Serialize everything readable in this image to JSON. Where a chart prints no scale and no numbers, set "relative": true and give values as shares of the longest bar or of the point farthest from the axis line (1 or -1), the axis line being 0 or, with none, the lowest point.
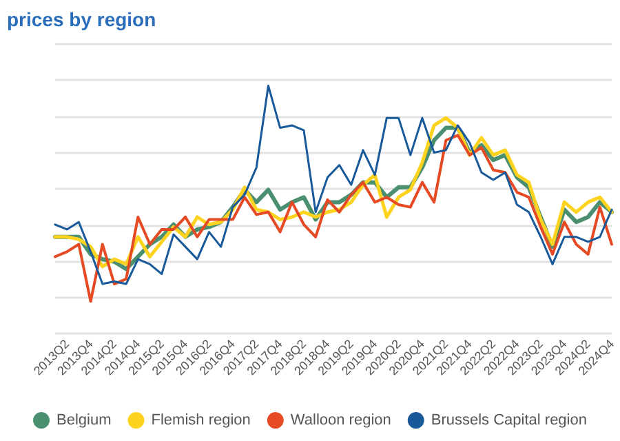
{
  "chart_data": {
    "type": "line",
    "title": "prices by region",
    "relative": true,
    "grid": "y",
    "legend": "bottom",
    "marker": "none",
    "line_style": "solid",
    "categories": [
      null,
      "2013Q2",
      null,
      "2013Q4",
      null,
      "2014Q2",
      null,
      "2014Q4",
      null,
      "2015Q2",
      null,
      "2015Q4",
      null,
      "2016Q2",
      null,
      "2016Q4",
      null,
      "2017Q2",
      null,
      "2017Q4",
      null,
      "2018Q2",
      null,
      "2018Q4",
      null,
      "2019Q2",
      null,
      "2019Q4",
      null,
      "2020Q2",
      null,
      "2020Q4",
      null,
      "2021Q2",
      null,
      "2021Q4",
      null,
      "2022Q2",
      null,
      "2022Q4",
      null,
      "2023Q2",
      null,
      "2023Q4",
      null,
      "2024Q2",
      null,
      "2024Q4"
    ],
    "series": [
      {
        "name": "Belgium",
        "color": "#4a8f6f",
        "values": [
          0.39,
          0.39,
          0.39,
          0.32,
          0.3,
          0.29,
          0.26,
          0.31,
          0.36,
          0.39,
          0.44,
          0.39,
          0.42,
          0.43,
          0.45,
          0.51,
          0.58,
          0.53,
          0.58,
          0.5,
          0.53,
          0.55,
          0.46,
          0.53,
          0.53,
          0.56,
          0.61,
          0.61,
          0.55,
          0.59,
          0.59,
          0.67,
          0.78,
          0.83,
          0.83,
          0.73,
          0.76,
          0.7,
          0.72,
          0.63,
          0.59,
          0.47,
          0.35,
          0.5,
          0.45,
          0.47,
          0.53,
          0.49
        ]
      },
      {
        "name": "Flemish region",
        "color": "#fdd31f",
        "values": [
          0.39,
          0.39,
          0.38,
          0.35,
          0.27,
          0.3,
          0.28,
          0.39,
          0.31,
          0.37,
          0.43,
          0.39,
          0.47,
          0.44,
          0.45,
          0.5,
          0.59,
          0.5,
          0.49,
          0.46,
          0.47,
          0.49,
          0.47,
          0.49,
          0.5,
          0.53,
          0.6,
          0.64,
          0.47,
          0.55,
          0.58,
          0.69,
          0.84,
          0.87,
          0.83,
          0.72,
          0.79,
          0.72,
          0.74,
          0.64,
          0.61,
          0.46,
          0.36,
          0.53,
          0.49,
          0.53,
          0.55,
          0.49
        ]
      },
      {
        "name": "Walloon region",
        "color": "#e64a24",
        "values": [
          0.31,
          0.33,
          0.36,
          0.13,
          0.36,
          0.2,
          0.22,
          0.47,
          0.36,
          0.42,
          0.42,
          0.47,
          0.39,
          0.46,
          0.46,
          0.46,
          0.55,
          0.48,
          0.49,
          0.41,
          0.53,
          0.44,
          0.39,
          0.54,
          0.49,
          0.56,
          0.61,
          0.53,
          0.55,
          0.52,
          0.51,
          0.61,
          0.53,
          0.78,
          0.8,
          0.72,
          0.75,
          0.66,
          0.65,
          0.57,
          0.55,
          0.43,
          0.32,
          0.45,
          0.36,
          0.32,
          0.51,
          0.36
        ]
      },
      {
        "name": "Brussels Capital region",
        "color": "#18599a",
        "values": [
          0.44,
          0.42,
          0.45,
          0.33,
          0.2,
          0.21,
          0.2,
          0.3,
          0.28,
          0.24,
          0.4,
          0.35,
          0.3,
          0.41,
          0.35,
          0.51,
          0.56,
          0.67,
          1,
          0.83,
          0.84,
          0.82,
          0.49,
          0.63,
          0.68,
          0.6,
          0.74,
          0.64,
          0.87,
          0.87,
          0.72,
          0.87,
          0.73,
          0.74,
          0.84,
          0.77,
          0.65,
          0.62,
          0.65,
          0.52,
          0.49,
          0.39,
          0.28,
          0.39,
          0.39,
          0.37,
          0.39,
          0.5
        ]
      }
    ]
  }
}
